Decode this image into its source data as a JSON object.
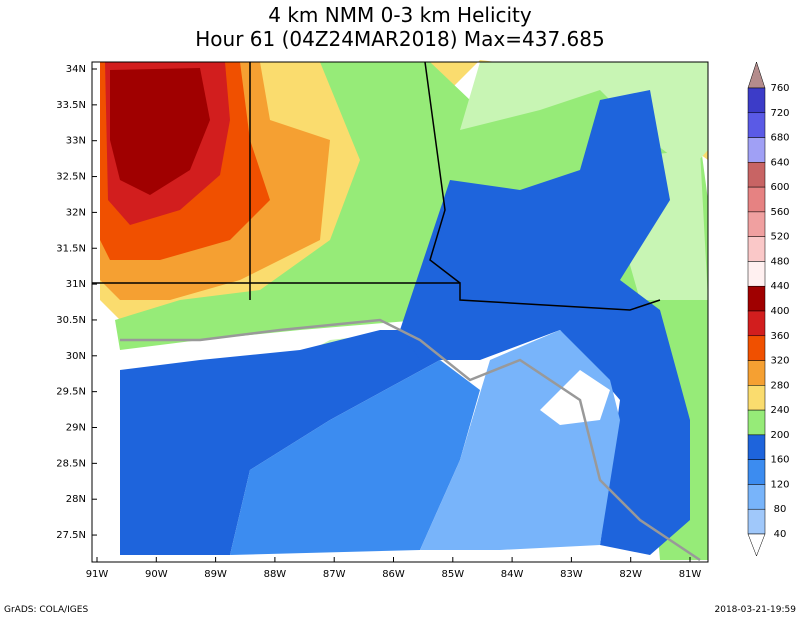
{
  "title": {
    "line1": "4 km NMM 0-3 km Helicity",
    "line2": "Hour 61 (04Z24MAR2018) Max=437.685"
  },
  "map": {
    "lat_labels": [
      "34N",
      "33.5N",
      "33N",
      "32.5N",
      "32N",
      "31.5N",
      "31N",
      "30.5N",
      "30N",
      "29.5N",
      "29N",
      "28.5N",
      "28N",
      "27.5N"
    ],
    "lon_labels": [
      "91W",
      "90W",
      "89W",
      "88W",
      "87W",
      "86W",
      "85W",
      "84W",
      "83W",
      "82W",
      "81W"
    ]
  },
  "colorbar": {
    "labels": [
      760,
      720,
      680,
      640,
      600,
      560,
      520,
      480,
      440,
      400,
      360,
      320,
      280,
      240,
      200,
      160,
      120,
      80,
      40
    ]
  },
  "footer": {
    "left": "GrADS: COLA/IGES",
    "right": "2018-03-21-19:59"
  }
}
